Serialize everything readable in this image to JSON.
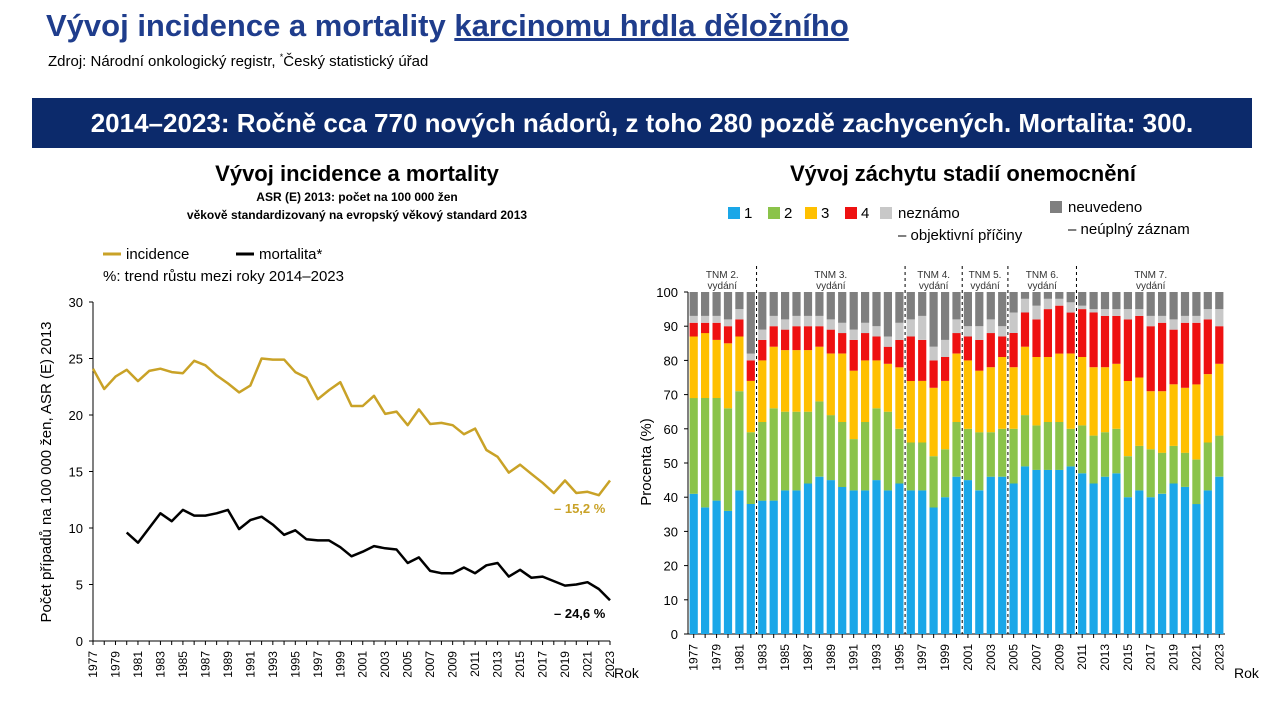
{
  "page": {
    "title_plain": "Vývoj incidence a mortality ",
    "title_link": "karcinomu hrdla děložního",
    "source_prefix": "Zdroj: Národní onkologický registr, ",
    "source_mark": "*",
    "source_suffix": "Český statistický úřad",
    "banner": "2014–2023: Ročně cca 770 nových nádorů, z toho 280 pozdě zachycených. Mortalita: 300."
  },
  "colors": {
    "incidence": "#c9a227",
    "mortalita": "#000000",
    "stage1": "#1aa7e8",
    "stage2": "#8bc34a",
    "stage3": "#ffc000",
    "stage4": "#ee1111",
    "unknown_objective": "#c8c8c8",
    "unknown_incomplete": "#7f7f7f"
  },
  "chart_data": [
    {
      "type": "line",
      "title": "Vývoj incidence a mortality",
      "subtitle1": "ASR (E) 2013: počet na 100 000 žen",
      "subtitle2": "věkově standardizovaný na evropský věkový standard 2013",
      "ylabel": "Počet případů na 100 000 žen, ASR (E) 2013",
      "xlabel": "Rok",
      "ylim": [
        0,
        30
      ],
      "yticks": [
        0,
        5,
        10,
        15,
        20,
        25,
        30
      ],
      "trend_note": "%: trend růstu mezi roky 2014–2023",
      "x": [
        1977,
        1978,
        1979,
        1980,
        1981,
        1982,
        1983,
        1984,
        1985,
        1986,
        1987,
        1988,
        1989,
        1990,
        1991,
        1992,
        1993,
        1994,
        1995,
        1996,
        1997,
        1998,
        1999,
        2000,
        2001,
        2002,
        2003,
        2004,
        2005,
        2006,
        2007,
        2008,
        2009,
        2010,
        2011,
        2012,
        2013,
        2014,
        2015,
        2016,
        2017,
        2018,
        2019,
        2020,
        2021,
        2022,
        2023
      ],
      "xtick_labels": [
        "1977",
        "1979",
        "1981",
        "1983",
        "1985",
        "1987",
        "1989",
        "1991",
        "1993",
        "1995",
        "1997",
        "1999",
        "2001",
        "2003",
        "2005",
        "2007",
        "2009",
        "2011",
        "2013",
        "2015",
        "2017",
        "2019",
        "2021",
        "2023"
      ],
      "series": [
        {
          "name": "incidence",
          "annotation": "– 15,2 %",
          "values": [
            24.1,
            22.3,
            23.4,
            24.0,
            23.0,
            23.9,
            24.1,
            23.8,
            23.7,
            24.8,
            24.4,
            23.5,
            22.8,
            22.0,
            22.6,
            25.0,
            24.9,
            24.9,
            23.8,
            23.3,
            21.4,
            22.2,
            22.9,
            20.8,
            20.8,
            21.7,
            20.1,
            20.3,
            19.1,
            20.5,
            19.2,
            19.3,
            19.1,
            18.3,
            18.8,
            16.9,
            16.3,
            14.9,
            15.6,
            14.8,
            14.0,
            13.1,
            14.2,
            13.1,
            13.2,
            12.9,
            14.2
          ]
        },
        {
          "name": "mortalita*",
          "annotation": "– 24,6 %",
          "values": [
            null,
            null,
            null,
            9.6,
            8.7,
            10.0,
            11.3,
            10.6,
            11.6,
            11.1,
            11.1,
            11.3,
            11.6,
            9.9,
            10.7,
            11.0,
            10.3,
            9.4,
            9.8,
            9.0,
            8.9,
            8.9,
            8.3,
            7.5,
            7.9,
            8.4,
            8.2,
            8.1,
            6.9,
            7.4,
            6.2,
            6.0,
            6.0,
            6.5,
            6.0,
            6.7,
            6.9,
            5.7,
            6.3,
            5.6,
            5.7,
            5.3,
            4.9,
            5.0,
            5.2,
            4.6,
            3.6
          ]
        }
      ]
    },
    {
      "type": "bar",
      "stacked": true,
      "title": "Vývoj záchytu stadií onemocnění",
      "ylabel": "Procenta (%)",
      "xlabel": "Rok",
      "ylim": [
        0,
        100
      ],
      "yticks": [
        0,
        10,
        20,
        30,
        40,
        50,
        60,
        70,
        80,
        90,
        100
      ],
      "legend": [
        {
          "key": "stage1",
          "label": "1"
        },
        {
          "key": "stage2",
          "label": "2"
        },
        {
          "key": "stage3",
          "label": "3"
        },
        {
          "key": "stage4",
          "label": "4"
        },
        {
          "key": "unknown_objective",
          "label_line1": "neznámo",
          "label_line2": "– objektivní příčiny"
        },
        {
          "key": "unknown_incomplete",
          "label_line1": "neuvedeno",
          "label_line2": "– neúplný záznam"
        }
      ],
      "editions": [
        {
          "line1": "TNM 2.",
          "line2": "vydání",
          "from": 1977,
          "to": 1982
        },
        {
          "line1": "TNM 3.",
          "line2": "vydání",
          "from": 1982,
          "to": 1995
        },
        {
          "line1": "TNM 4.",
          "line2": "vydání",
          "from": 1995,
          "to": 2000
        },
        {
          "line1": "TNM 5.",
          "line2": "vydání",
          "from": 2000,
          "to": 2004
        },
        {
          "line1": "TNM 6.",
          "line2": "vydání",
          "from": 2004,
          "to": 2010
        },
        {
          "line1": "TNM 7.",
          "line2": "vydání",
          "from": 2010,
          "to": 2023
        }
      ],
      "edition_boundaries": [
        1982,
        1995,
        2000,
        2004,
        2010
      ],
      "categories": [
        1977,
        1978,
        1979,
        1980,
        1981,
        1982,
        1983,
        1984,
        1985,
        1986,
        1987,
        1988,
        1989,
        1990,
        1991,
        1992,
        1993,
        1994,
        1995,
        1996,
        1997,
        1998,
        1999,
        2000,
        2001,
        2002,
        2003,
        2004,
        2005,
        2006,
        2007,
        2008,
        2009,
        2010,
        2011,
        2012,
        2013,
        2014,
        2015,
        2016,
        2017,
        2018,
        2019,
        2020,
        2021,
        2022,
        2023
      ],
      "xtick_labels": [
        "1977",
        "1979",
        "1981",
        "1983",
        "1985",
        "1987",
        "1989",
        "1991",
        "1993",
        "1995",
        "1997",
        "1999",
        "2001",
        "2003",
        "2005",
        "2007",
        "2009",
        "2011",
        "2013",
        "2015",
        "2017",
        "2019",
        "2021",
        "2023"
      ],
      "series": [
        {
          "key": "stage1",
          "values": [
            41,
            37,
            39,
            36,
            42,
            38,
            39,
            39,
            42,
            42,
            44,
            46,
            45,
            43,
            42,
            42,
            45,
            42,
            44,
            42,
            42,
            37,
            40,
            46,
            45,
            42,
            46,
            46,
            44,
            49,
            48,
            48,
            48,
            49,
            47,
            44,
            46,
            47,
            40,
            42,
            40,
            41,
            44,
            43,
            38,
            42,
            46
          ]
        },
        {
          "key": "stage2",
          "values": [
            28,
            32,
            30,
            30,
            29,
            21,
            23,
            27,
            23,
            23,
            21,
            22,
            19,
            19,
            15,
            20,
            21,
            23,
            16,
            14,
            14,
            15,
            14,
            16,
            15,
            17,
            13,
            14,
            16,
            15,
            13,
            14,
            14,
            11,
            14,
            14,
            13,
            13,
            12,
            13,
            14,
            12,
            11,
            10,
            13,
            14,
            12
          ]
        },
        {
          "key": "stage3",
          "values": [
            18,
            19,
            17,
            19,
            16,
            15,
            18,
            18,
            18,
            18,
            18,
            16,
            18,
            20,
            20,
            18,
            14,
            14,
            18,
            18,
            18,
            20,
            20,
            20,
            20,
            18,
            19,
            21,
            18,
            20,
            20,
            19,
            20,
            22,
            20,
            20,
            19,
            19,
            22,
            20,
            17,
            18,
            18,
            19,
            22,
            20,
            21
          ]
        },
        {
          "key": "stage4",
          "values": [
            4,
            3,
            5,
            5,
            5,
            6,
            6,
            6,
            6,
            7,
            7,
            6,
            7,
            6,
            9,
            8,
            7,
            5,
            8,
            13,
            12,
            8,
            7,
            6,
            7,
            9,
            10,
            6,
            10,
            10,
            11,
            14,
            14,
            12,
            14,
            16,
            15,
            14,
            18,
            18,
            19,
            20,
            16,
            19,
            18,
            16,
            11
          ]
        },
        {
          "key": "unknown_objective",
          "values": [
            2,
            2,
            2,
            2,
            3,
            2,
            3,
            3,
            3,
            3,
            3,
            3,
            3,
            3,
            3,
            3,
            3,
            3,
            5,
            5,
            7,
            4,
            5,
            4,
            3,
            4,
            4,
            3,
            6,
            4,
            4,
            3,
            2,
            3,
            1,
            1,
            2,
            2,
            3,
            2,
            3,
            2,
            3,
            2,
            2,
            3,
            5
          ]
        },
        {
          "key": "unknown_incomplete",
          "values": [
            7,
            7,
            7,
            8,
            5,
            18,
            11,
            7,
            8,
            7,
            7,
            7,
            8,
            9,
            11,
            9,
            10,
            13,
            9,
            8,
            7,
            16,
            14,
            8,
            10,
            10,
            8,
            10,
            6,
            2,
            4,
            2,
            2,
            3,
            4,
            5,
            5,
            5,
            5,
            5,
            7,
            7,
            8,
            7,
            7,
            5,
            5
          ]
        }
      ]
    }
  ]
}
